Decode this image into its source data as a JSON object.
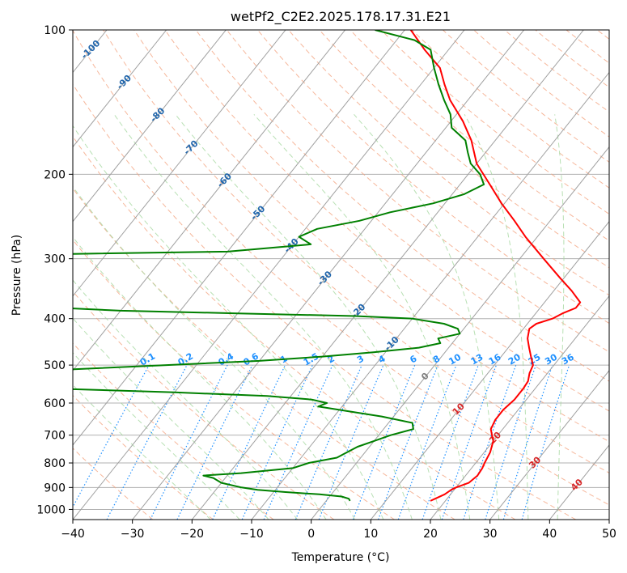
{
  "chart_data": {
    "type": "line",
    "title": "wetPf2_C2E2.2025.178.17.31.E21",
    "xlabel": "Temperature (°C)",
    "ylabel": "Pressure (hPa)",
    "xlim": [
      -40,
      50
    ],
    "ylim": [
      1050,
      100
    ],
    "y_scale": "log",
    "grid": true,
    "x_ticks": [
      "−40",
      "−30",
      "−20",
      "−10",
      "0",
      "10",
      "20",
      "30",
      "40",
      "50"
    ],
    "y_ticks": [
      "100",
      "200",
      "300",
      "400",
      "500",
      "600",
      "700",
      "800",
      "900",
      "1000"
    ],
    "colors": {
      "temperature": "#ff0000",
      "dewpoint": "#008000",
      "isotherm": "#a0a0a0",
      "dry_adiabat": "#f4a582",
      "moist_adiabat": "#a6d8a0",
      "mixing_ratio": "#1e90ff",
      "isotherm_label": "#2166ac",
      "moist_label": "#d62728",
      "mixing_label": "#1e90ff"
    },
    "series": [
      {
        "key": "temperature",
        "pressure": [
          960,
          950,
          930,
          910,
          900,
          880,
          850,
          820,
          800,
          760,
          720,
          700,
          680,
          650,
          620,
          590,
          560,
          540,
          520,
          500,
          480,
          460,
          440,
          420,
          410,
          400,
          390,
          380,
          370,
          350,
          330,
          300,
          270,
          250,
          230,
          210,
          190,
          170,
          155,
          140,
          130,
          120,
          110,
          100
        ],
        "temp": [
          17.5,
          18,
          19,
          19.5,
          20,
          21.5,
          22,
          21.8,
          21.5,
          21,
          20,
          19,
          18,
          17.5,
          17.5,
          18,
          18,
          17.8,
          17,
          16.5,
          15,
          13.5,
          12,
          11,
          11.5,
          13.5,
          14.5,
          16,
          16,
          13,
          9.5,
          4,
          -2,
          -6,
          -10.5,
          -15,
          -20,
          -24,
          -28,
          -33,
          -36,
          -39,
          -44,
          -49
        ]
      },
      {
        "key": "dewpoint",
        "pressure": [
          960,
          950,
          940,
          930,
          920,
          910,
          900,
          880,
          860,
          850,
          840,
          830,
          820,
          800,
          780,
          760,
          740,
          720,
          700,
          680,
          660,
          640,
          620,
          610,
          600,
          590,
          580,
          570,
          560,
          555,
          550,
          540,
          530,
          520,
          510,
          500,
          490,
          480,
          470,
          460,
          450,
          440,
          430,
          420,
          410,
          400,
          395,
          390,
          385,
          380,
          375,
          370,
          360,
          350,
          340,
          330,
          320,
          310,
          300,
          295,
          290,
          280,
          270,
          260,
          250,
          240,
          230,
          220,
          210,
          200,
          190,
          180,
          170,
          160,
          150,
          140,
          130,
          120,
          110,
          105,
          100
        ],
        "temp": [
          4,
          3.5,
          2,
          -2,
          -8,
          -13,
          -16,
          -20,
          -22,
          -24,
          -18,
          -14,
          -10,
          -8,
          -4,
          -3,
          -2,
          0,
          2,
          5,
          4,
          -2,
          -10,
          -14,
          -13,
          -16,
          -24,
          -40,
          -60,
          -80,
          -130,
          -150,
          -120,
          -90,
          -60,
          -45,
          -30,
          -20,
          -12,
          -5,
          -2,
          -3,
          0,
          -1,
          -4,
          -10,
          -20,
          -40,
          -60,
          -70,
          -75,
          -78,
          -80,
          -85,
          -100,
          -110,
          -120,
          -130,
          -150,
          -90,
          -50,
          -37,
          -40,
          -38,
          -32,
          -28,
          -22,
          -18,
          -16,
          -18,
          -21,
          -23,
          -25,
          -29,
          -31,
          -34,
          -37,
          -40,
          -43,
          -47,
          -55
        ]
      }
    ],
    "isotherm_labels": [
      "-100",
      "-90",
      "-80",
      "-70",
      "-60",
      "-50",
      "-40",
      "-30",
      "-20",
      "-10",
      "0",
      "10",
      "20",
      "30",
      "40"
    ],
    "mixing_ratio_labels": [
      "0.1",
      "0.2",
      "0.4",
      "0.6",
      "1",
      "1.5",
      "2",
      "3",
      "4",
      "6",
      "8",
      "10",
      "13",
      "16",
      "20",
      "25",
      "30",
      "36"
    ]
  }
}
